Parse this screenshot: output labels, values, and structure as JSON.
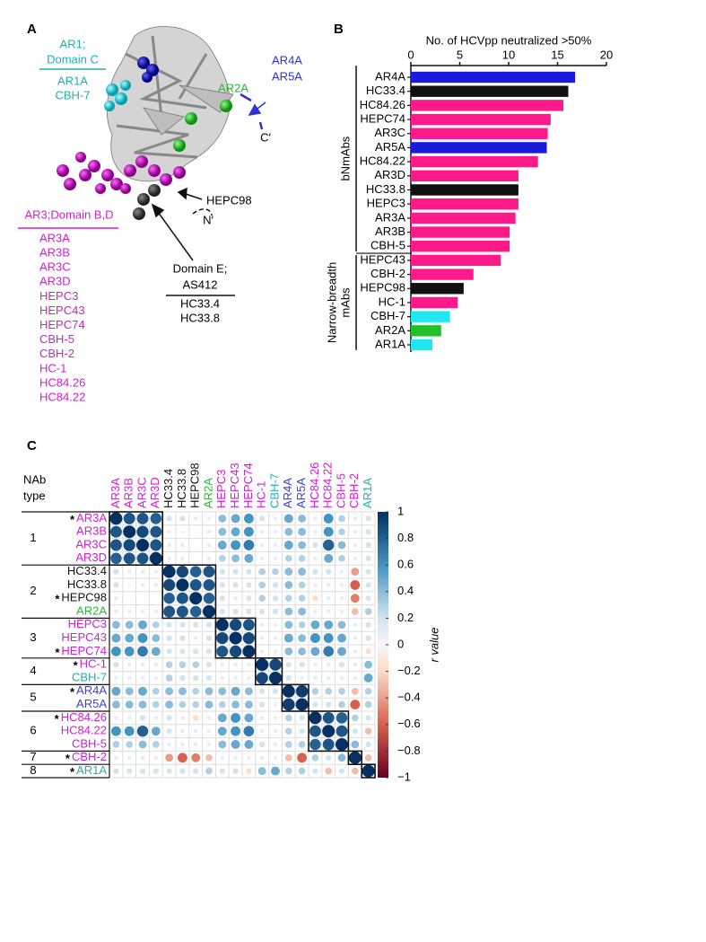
{
  "panel_labels": [
    "A",
    "B",
    "C"
  ],
  "structure": {
    "ar1_title": "AR1;",
    "ar1_domain": "Domain C",
    "ar1_members": [
      "AR1A",
      "CBH-7"
    ],
    "ar2": "AR2A",
    "ar4_ar5": [
      "AR4A",
      "AR5A"
    ],
    "c_term": "C′",
    "hepc98": "HEPC98",
    "n_term": "N′",
    "ar3_title": "AR3;Domain B,D",
    "ar3_members": [
      "AR3A",
      "AR3B",
      "AR3C",
      "AR3D",
      "HEPC3",
      "HEPC43",
      "HEPC74",
      "CBH-5",
      "CBH-2",
      "HC-1",
      "HC84.26",
      "HC84.22"
    ],
    "domain_e": [
      "Domain E;",
      "AS412"
    ],
    "domain_e_members": [
      "HC33.4",
      "HC33.8"
    ]
  },
  "chart_data": [
    {
      "type": "hbar",
      "title": "No. of HCVpp neutralized >50%",
      "categories": [
        "AR4A",
        "HC33.4",
        "HC84.26",
        "HEPC74",
        "AR3C",
        "AR5A",
        "HC84.22",
        "AR3D",
        "HC33.8",
        "HEPC3",
        "AR3A",
        "AR3B",
        "CBH-5",
        "HEPC43",
        "CBH-2",
        "HEPC98",
        "HC-1",
        "CBH-7",
        "AR2A",
        "AR1A"
      ],
      "values": [
        16.8,
        16.1,
        15.6,
        14.3,
        14.0,
        13.9,
        13.0,
        11.0,
        11.0,
        11.0,
        10.7,
        10.1,
        10.1,
        9.2,
        6.4,
        5.4,
        4.8,
        4.0,
        3.1,
        2.2
      ],
      "colors": [
        "#1a1adc",
        "#111111",
        "#ff1a8c",
        "#ff1a8c",
        "#ff1a8c",
        "#1a1adc",
        "#ff1a8c",
        "#ff1a8c",
        "#111111",
        "#ff1a8c",
        "#ff1a8c",
        "#ff1a8c",
        "#ff1a8c",
        "#ff1a8c",
        "#ff1a8c",
        "#111111",
        "#ff1a8c",
        "#22e6f0",
        "#22c02a",
        "#22e6f0"
      ],
      "xlim": [
        0,
        20
      ],
      "xticks": [
        0,
        5,
        10,
        15,
        20
      ],
      "groups": [
        {
          "label": [
            "bNmAbs"
          ],
          "size": 13
        },
        {
          "label": [
            "Narrow-breadth",
            "mAbs"
          ],
          "size": 7
        }
      ]
    },
    {
      "type": "corrplot",
      "colormap": "RdBu",
      "nab_type_header": [
        "NAb",
        "type"
      ],
      "labels": [
        "AR3A",
        "AR3B",
        "AR3C",
        "AR3D",
        "HC33.4",
        "HC33.8",
        "HEPC98",
        "AR2A",
        "HEPC3",
        "HEPC43",
        "HEPC74",
        "HC-1",
        "CBH-7",
        "AR4A",
        "AR5A",
        "HC84.26",
        "HC84.22",
        "CBH-5",
        "CBH-2",
        "AR1A"
      ],
      "label_colors": [
        "#d020d0",
        "#d020d0",
        "#d020d0",
        "#d020d0",
        "#111111",
        "#111111",
        "#111111",
        "#22c02a",
        "#d020d0",
        "#d020d0",
        "#d020d0",
        "#d020d0",
        "#20b0b0",
        "#4040c8",
        "#4040c8",
        "#d020d0",
        "#d020d0",
        "#d020d0",
        "#d020d0",
        "#20b0b0"
      ],
      "row_stars": [
        "*",
        null,
        null,
        null,
        null,
        null,
        "*",
        null,
        null,
        null,
        "*",
        "*",
        null,
        "*",
        null,
        "*",
        null,
        null,
        "*",
        "*"
      ],
      "groups": [
        {
          "label": "1",
          "size": 4
        },
        {
          "label": "2",
          "size": 4
        },
        {
          "label": "3",
          "size": 3
        },
        {
          "label": "4",
          "size": 2
        },
        {
          "label": "5",
          "size": 2
        },
        {
          "label": "6",
          "size": 3
        },
        {
          "label": "7",
          "size": 1
        },
        {
          "label": "8",
          "size": 1
        }
      ],
      "matrix": [
        [
          1,
          0.85,
          0.85,
          0.8,
          0.2,
          0.2,
          0.1,
          0.1,
          0.4,
          0.5,
          0.6,
          0.2,
          0.1,
          0.5,
          0.4,
          0.1,
          0.6,
          0.3,
          0.1,
          0.2
        ],
        [
          0.85,
          1,
          0.9,
          0.85,
          0.1,
          0.05,
          0,
          0.1,
          0.4,
          0.5,
          0.6,
          0.1,
          0.1,
          0.4,
          0.4,
          0.1,
          0.6,
          0.3,
          0.1,
          0.2
        ],
        [
          0.85,
          0.9,
          1,
          0.85,
          0.1,
          0.1,
          0,
          0.1,
          0.5,
          0.6,
          0.7,
          0.1,
          0.1,
          0.5,
          0.4,
          0.2,
          0.8,
          0.4,
          0.1,
          0.2
        ],
        [
          0.8,
          0.85,
          0.85,
          1,
          0.1,
          0.1,
          0,
          0.1,
          0.3,
          0.4,
          0.5,
          0.1,
          0.1,
          0.3,
          0.3,
          0.1,
          0.5,
          0.3,
          0.1,
          0.2
        ],
        [
          0.2,
          0.1,
          0.1,
          0.1,
          1,
          0.9,
          0.8,
          0.85,
          0.2,
          0.2,
          0.2,
          0.3,
          0.3,
          0.4,
          0.4,
          0.2,
          0.2,
          0.1,
          -0.4,
          0.2
        ],
        [
          0.2,
          0.05,
          0.1,
          0.1,
          0.9,
          1,
          0.85,
          0.85,
          0.2,
          0.2,
          0.2,
          0.3,
          0.2,
          0.4,
          0.3,
          0.1,
          0.1,
          0.1,
          -0.6,
          0.2
        ],
        [
          0.1,
          0,
          0,
          0,
          0.8,
          0.85,
          1,
          0.8,
          0.2,
          0.1,
          0.2,
          0.3,
          0.2,
          0.3,
          0.3,
          -0.2,
          0.1,
          0.1,
          -0.5,
          0.2
        ],
        [
          0.1,
          0.1,
          0.1,
          0.1,
          0.85,
          0.85,
          0.8,
          1,
          0.2,
          0.2,
          0.2,
          0.2,
          0.2,
          0.4,
          0.4,
          0.1,
          0.1,
          0.1,
          -0.3,
          0.3
        ],
        [
          0.4,
          0.4,
          0.5,
          0.3,
          0.2,
          0.2,
          0.2,
          0.2,
          1,
          0.9,
          0.85,
          0.1,
          0.1,
          0.4,
          0.3,
          0.5,
          0.5,
          0.4,
          0.1,
          0.2
        ],
        [
          0.5,
          0.5,
          0.6,
          0.4,
          0.2,
          0.2,
          0.1,
          0.2,
          0.9,
          1,
          0.9,
          0.1,
          0.1,
          0.5,
          0.4,
          0.6,
          0.6,
          0.5,
          0.1,
          0.2
        ],
        [
          0.6,
          0.6,
          0.7,
          0.5,
          0.2,
          0.2,
          0.2,
          0.2,
          0.85,
          0.9,
          1,
          0.1,
          0.1,
          0.4,
          0.4,
          0.5,
          0.7,
          0.5,
          0.1,
          -0.2
        ],
        [
          0.2,
          0.1,
          0.1,
          0.1,
          0.3,
          0.3,
          0.3,
          0.2,
          0.1,
          0.1,
          0.1,
          1,
          0.9,
          0.2,
          0.2,
          0.1,
          0.1,
          0.2,
          0.1,
          0.4
        ],
        [
          0.1,
          0.1,
          0.1,
          0.1,
          0.3,
          0.2,
          0.2,
          0.2,
          0.1,
          0.1,
          0.1,
          0.9,
          1,
          0.2,
          0.1,
          0.1,
          0.1,
          0.1,
          0.1,
          0.5
        ],
        [
          0.5,
          0.4,
          0.5,
          0.3,
          0.4,
          0.4,
          0.3,
          0.4,
          0.4,
          0.5,
          0.4,
          0.2,
          0.2,
          1,
          0.95,
          0.3,
          0.3,
          0.3,
          -0.3,
          0.3
        ],
        [
          0.4,
          0.4,
          0.4,
          0.3,
          0.4,
          0.3,
          0.3,
          0.4,
          0.3,
          0.4,
          0.4,
          0.2,
          0.1,
          0.95,
          1,
          0.2,
          0.2,
          0.3,
          -0.6,
          0.3
        ],
        [
          0.1,
          0.1,
          0.2,
          0.1,
          0.2,
          0.1,
          -0.2,
          0.1,
          0.5,
          0.6,
          0.5,
          0.1,
          0.1,
          0.3,
          0.2,
          1,
          0.85,
          0.8,
          0.3,
          0.2
        ],
        [
          0.6,
          0.6,
          0.8,
          0.5,
          0.2,
          0.1,
          0.1,
          0.1,
          0.5,
          0.6,
          0.7,
          0.1,
          0.1,
          0.3,
          0.2,
          0.85,
          1,
          0.85,
          0.2,
          -0.3
        ],
        [
          0.3,
          0.3,
          0.4,
          0.3,
          0.1,
          0.1,
          0.1,
          0.1,
          0.4,
          0.5,
          0.5,
          0.2,
          0.1,
          0.3,
          0.3,
          0.8,
          0.85,
          1,
          0.4,
          0.2
        ],
        [
          0.1,
          0.1,
          0.1,
          0.1,
          -0.4,
          -0.6,
          -0.5,
          -0.3,
          0.1,
          0.1,
          0.1,
          0.1,
          0.1,
          -0.3,
          -0.6,
          0.3,
          0.2,
          0.4,
          1,
          -0.3
        ],
        [
          0.2,
          0.2,
          0.2,
          0.2,
          0.2,
          0.2,
          0.2,
          0.3,
          0.2,
          0.2,
          -0.2,
          0.4,
          0.5,
          0.3,
          0.3,
          0.2,
          -0.3,
          0.2,
          -0.3,
          1
        ]
      ],
      "clim": [
        -1,
        1
      ],
      "cticks": [
        1,
        0.8,
        0.6,
        0.4,
        0.2,
        0,
        {
          "value": -0.2,
          "label": "−0.2"
        },
        {
          "value": -0.4,
          "label": "−0.4"
        },
        {
          "value": -0.6,
          "label": "−0.6"
        },
        {
          "value": -0.8,
          "label": "−0.8"
        },
        {
          "value": -1,
          "label": "−1"
        }
      ],
      "colorbar_label": "r value"
    }
  ]
}
